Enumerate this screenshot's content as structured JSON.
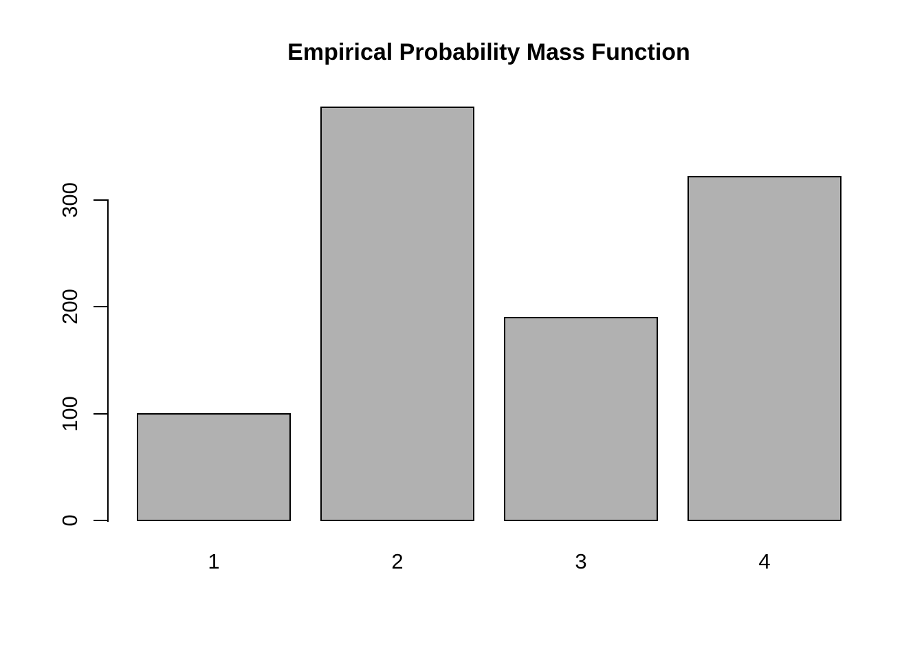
{
  "chart_data": {
    "type": "bar",
    "title": "Empirical Probability Mass Function",
    "categories": [
      "1",
      "2",
      "3",
      "4"
    ],
    "values": [
      100,
      387,
      190,
      322
    ],
    "xlabel": "",
    "ylabel": "",
    "yticks": [
      0,
      100,
      200,
      300
    ],
    "ylim": [
      0,
      300
    ],
    "grid": false,
    "legend_position": "none",
    "bar_fill_color": "#b1b1b1",
    "bar_border_color": "#000000",
    "axis_color": "#000000",
    "text_color": "#000000",
    "background_color": "#ffffff"
  }
}
